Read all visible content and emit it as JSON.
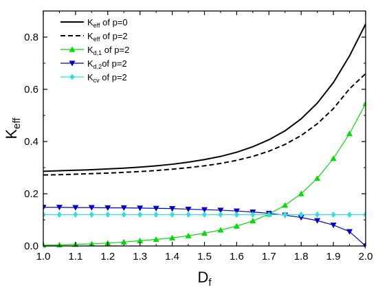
{
  "chart_data": {
    "type": "line",
    "xlabel": {
      "main": "D",
      "sub": "f"
    },
    "ylabel": {
      "main": "K",
      "sub": "eff"
    },
    "xlim": [
      1.0,
      2.0
    ],
    "ylim": [
      0.0,
      0.9
    ],
    "x_ticks": [
      1.0,
      1.1,
      1.2,
      1.3,
      1.4,
      1.5,
      1.6,
      1.7,
      1.8,
      1.9,
      2.0
    ],
    "x_tick_labels": [
      "1.0",
      "1.1",
      "1.2",
      "1.3",
      "1.4",
      "1.5",
      "1.6",
      "1.7",
      "1.8",
      "1.9",
      "2.0"
    ],
    "y_ticks": [
      0.0,
      0.2,
      0.4,
      0.6,
      0.8
    ],
    "y_tick_labels": [
      "0.0",
      "0.2",
      "0.4",
      "0.6",
      "0.8"
    ],
    "grid": false,
    "legend_position": "top-left",
    "x": [
      1.0,
      1.05,
      1.1,
      1.15,
      1.2,
      1.25,
      1.3,
      1.35,
      1.4,
      1.45,
      1.5,
      1.55,
      1.6,
      1.65,
      1.7,
      1.75,
      1.8,
      1.85,
      1.9,
      1.95,
      2.0
    ],
    "series": [
      {
        "legend": {
          "main": "K",
          "sub": "eff",
          "tail": " of p=0"
        },
        "color": "#000000",
        "line": "solid",
        "marker": "none",
        "values": [
          0.286,
          0.288,
          0.29,
          0.292,
          0.295,
          0.298,
          0.302,
          0.307,
          0.313,
          0.321,
          0.331,
          0.343,
          0.359,
          0.38,
          0.407,
          0.441,
          0.487,
          0.547,
          0.626,
          0.728,
          0.85
        ]
      },
      {
        "legend": {
          "main": "K",
          "sub": "eff",
          "tail": " of p=2"
        },
        "color": "#000000",
        "line": "dashed",
        "marker": "none",
        "values": [
          0.272,
          0.273,
          0.275,
          0.277,
          0.279,
          0.282,
          0.285,
          0.289,
          0.294,
          0.3,
          0.307,
          0.316,
          0.328,
          0.343,
          0.363,
          0.389,
          0.423,
          0.468,
          0.526,
          0.602,
          0.66
        ]
      },
      {
        "legend": {
          "main": "K",
          "sub": "d,1",
          "tail": " of p=2"
        },
        "color": "#00dd00",
        "line": "solid",
        "marker": "triangle-up",
        "values": [
          0.003,
          0.004,
          0.006,
          0.008,
          0.011,
          0.015,
          0.02,
          0.025,
          0.031,
          0.039,
          0.049,
          0.061,
          0.076,
          0.096,
          0.122,
          0.156,
          0.2,
          0.259,
          0.335,
          0.43,
          0.545
        ]
      },
      {
        "legend": {
          "main": "K",
          "sub": "d,2",
          "tail": "of p=2"
        },
        "color": "#0000cc",
        "line": "solid",
        "marker": "triangle-down",
        "values": [
          0.148,
          0.148,
          0.147,
          0.147,
          0.146,
          0.146,
          0.145,
          0.144,
          0.143,
          0.141,
          0.139,
          0.137,
          0.134,
          0.13,
          0.125,
          0.118,
          0.109,
          0.097,
          0.08,
          0.055,
          0.0
        ]
      },
      {
        "legend": {
          "main": "K",
          "sub": "cv",
          "tail": " of p=2"
        },
        "color": "#33dddd",
        "line": "solid",
        "marker": "diamond",
        "values": [
          0.12,
          0.12,
          0.12,
          0.12,
          0.12,
          0.12,
          0.12,
          0.12,
          0.12,
          0.12,
          0.12,
          0.12,
          0.12,
          0.12,
          0.12,
          0.12,
          0.12,
          0.12,
          0.12,
          0.12,
          0.12
        ]
      }
    ]
  }
}
